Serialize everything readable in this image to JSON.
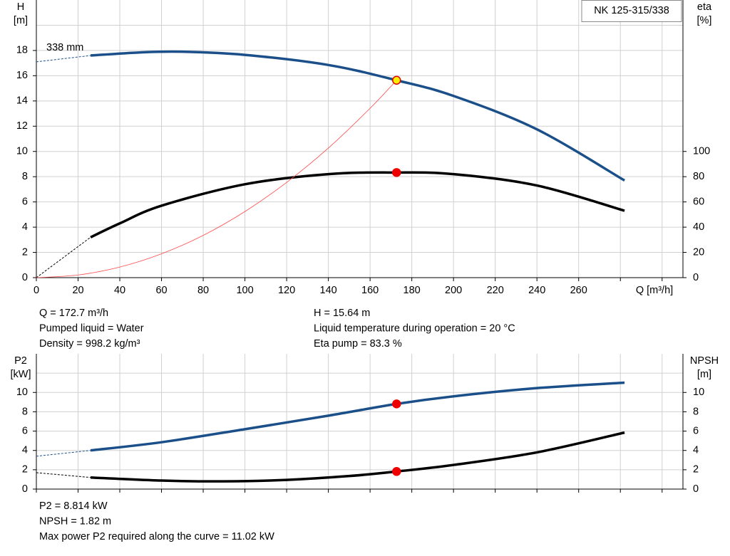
{
  "chart_data": [
    {
      "type": "line",
      "model": "NK 125-315/338",
      "curve_label": "338 mm",
      "xlabel": "Q [m³/h]",
      "ylabel": "H",
      "yunit": "[m]",
      "y2label": "eta",
      "y2unit": "[%]",
      "xlim": [
        0,
        310
      ],
      "ylim": [
        0,
        22
      ],
      "y2lim": [
        0,
        220
      ],
      "xticks": [
        0,
        20,
        40,
        60,
        80,
        100,
        120,
        140,
        160,
        180,
        200,
        220,
        240,
        260
      ],
      "xgrid": [
        280,
        300
      ],
      "yticks": [
        0,
        2,
        4,
        6,
        8,
        10,
        12,
        14,
        16,
        18
      ],
      "ygrid": [
        20
      ],
      "y2ticks": [
        0,
        20,
        40,
        60,
        80,
        100
      ],
      "grid": true,
      "series": [
        {
          "color": "#1b4f8a",
          "dashed": true,
          "x": [
            0,
            26
          ],
          "values": [
            17.1,
            17.6
          ]
        },
        {
          "color": "#1b4f8a",
          "x": [
            26,
            50,
            70,
            100,
            140,
            172.7,
            200,
            240,
            282
          ],
          "values": [
            17.6,
            17.85,
            17.9,
            17.65,
            16.85,
            15.64,
            14.4,
            11.75,
            7.7
          ]
        },
        {
          "color": "#000000",
          "dashed": true,
          "axis": "y2",
          "x": [
            0,
            26
          ],
          "values": [
            0,
            32
          ]
        },
        {
          "color": "#000000",
          "axis": "y2",
          "x": [
            26,
            40,
            60,
            100,
            140,
            172.7,
            200,
            240,
            282
          ],
          "values": [
            32,
            43,
            57,
            74,
            82,
            83.3,
            82,
            73,
            53
          ]
        },
        {
          "color": "#ff4a4a",
          "thin": true,
          "x": [
            0,
            20,
            40,
            60,
            80,
            100,
            120,
            140,
            160,
            172.7
          ],
          "values": [
            0,
            0.21,
            0.84,
            1.89,
            3.35,
            5.24,
            7.55,
            10.27,
            13.42,
            15.64
          ]
        }
      ],
      "points": [
        {
          "x": 172.7,
          "y": 15.64,
          "color": "#ffee00",
          "edge": "#e00000"
        },
        {
          "x": 172.7,
          "y": 83.3,
          "axis": "y2",
          "color": "#ee0000",
          "edge": "#ee0000"
        }
      ],
      "info_left": [
        "Q = 172.7 m³/h",
        "Pumped liquid = Water",
        "Density = 998.2 kg/m³"
      ],
      "info_right": [
        "H = 15.64 m",
        "Liquid temperature during operation = 20 °C",
        "Eta pump = 83.3 %"
      ]
    },
    {
      "type": "line",
      "ylabel": "P2",
      "yunit": "[kW]",
      "y2label": "NPSH",
      "y2unit": "[m]",
      "xlim": [
        0,
        310
      ],
      "ylim": [
        0,
        14
      ],
      "y2lim": [
        0,
        14
      ],
      "xgrid": [
        0,
        20,
        40,
        60,
        80,
        100,
        120,
        140,
        160,
        180,
        200,
        220,
        240,
        260,
        280,
        300
      ],
      "yticks": [
        0,
        2,
        4,
        6,
        8,
        10
      ],
      "ygrid": [
        12
      ],
      "y2ticks": [
        0,
        2,
        4,
        6,
        8,
        10
      ],
      "grid": true,
      "series": [
        {
          "color": "#1b4f8a",
          "dashed": true,
          "x": [
            0,
            26
          ],
          "values": [
            3.4,
            4.0
          ]
        },
        {
          "color": "#1b4f8a",
          "x": [
            26,
            60,
            100,
            140,
            172.7,
            200,
            240,
            282
          ],
          "values": [
            4.0,
            4.85,
            6.2,
            7.6,
            8.814,
            9.6,
            10.45,
            11.02
          ]
        },
        {
          "color": "#000000",
          "dashed": true,
          "axis": "y2",
          "x": [
            0,
            26
          ],
          "values": [
            1.7,
            1.2
          ]
        },
        {
          "color": "#000000",
          "axis": "y2",
          "x": [
            26,
            60,
            90,
            120,
            150,
            172.7,
            200,
            240,
            282
          ],
          "values": [
            1.2,
            0.88,
            0.8,
            0.95,
            1.35,
            1.82,
            2.5,
            3.8,
            5.85
          ]
        }
      ],
      "points": [
        {
          "x": 172.7,
          "y": 8.814,
          "color": "#ee0000",
          "edge": "#ee0000"
        },
        {
          "x": 172.7,
          "y": 1.82,
          "axis": "y2",
          "color": "#ee0000",
          "edge": "#ee0000"
        }
      ],
      "info_left": [
        "P2 = 8.814 kW",
        "NPSH = 1.82 m",
        "Max power P2 required along the curve = 11.02 kW"
      ]
    }
  ]
}
